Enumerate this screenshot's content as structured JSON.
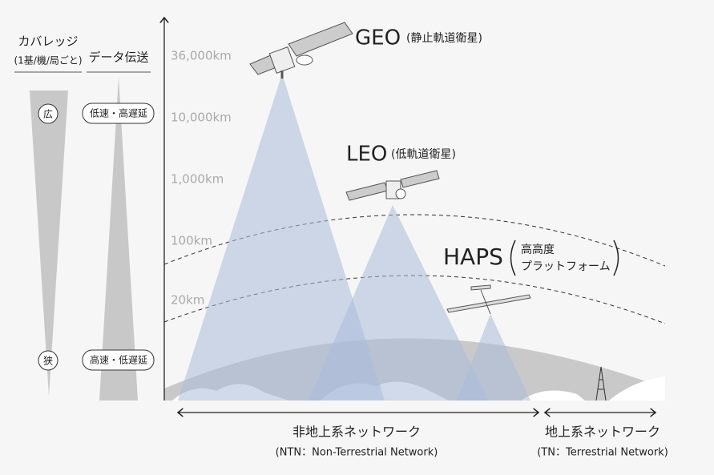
{
  "left": {
    "coverage": {
      "title": "カバレッジ",
      "subtitle": "(1基/機/局ごと)",
      "wide": "広",
      "narrow": "狭"
    },
    "transfer": {
      "title": "データ伝送",
      "top": "低速・高遅延",
      "bottom": "高速・低遅延"
    }
  },
  "altitudes": [
    "36,000km",
    "10,000km",
    "1,000km",
    "100km",
    "20km"
  ],
  "platforms": {
    "geo": {
      "name": "GEO",
      "note": "(静止軌道衛星)"
    },
    "leo": {
      "name": "LEO",
      "note": "(低軌道衛星)"
    },
    "haps": {
      "name": "HAPS",
      "note_line1": "高高度",
      "note_line2": "プラットフォーム"
    }
  },
  "networks": {
    "ntn": {
      "name": "非地上系ネットワーク",
      "note": "(NTN：Non-Terrestrial Network)"
    },
    "tn": {
      "name": "地上系ネットワーク",
      "note": "(TN：Terrestrial Network)"
    }
  }
}
